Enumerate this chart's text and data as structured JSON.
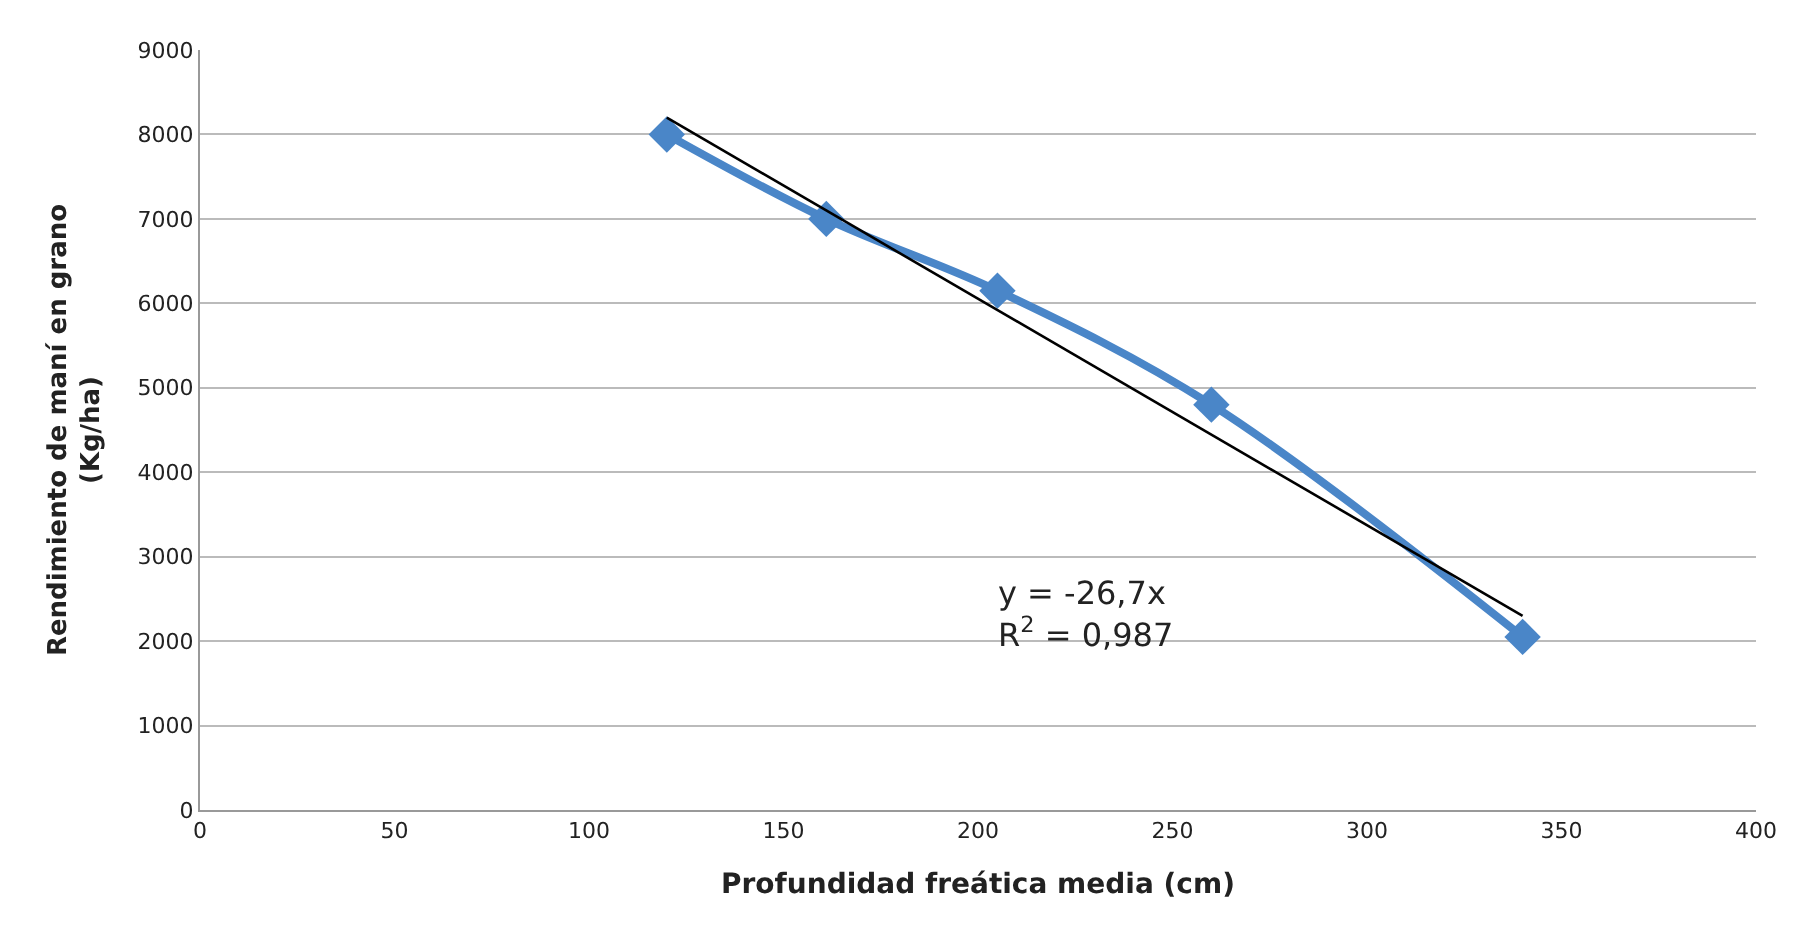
{
  "chart_data": {
    "type": "line",
    "xlabel": "Profundidad freática media (cm)",
    "ylabel": "Rendimiento de maní en grano\n(Kg/ha)",
    "xlim": [
      0,
      400
    ],
    "xticks": [
      0,
      50,
      100,
      150,
      200,
      250,
      300,
      350,
      400
    ],
    "ylim": [
      0,
      9000
    ],
    "yticks": [
      0,
      1000,
      2000,
      3000,
      4000,
      5000,
      6000,
      7000,
      8000,
      9000
    ],
    "grid": "y",
    "marker": "diamond",
    "line_style": "solid",
    "series": [
      {
        "color": "#4a86c8",
        "x": [
          120,
          161,
          205,
          260,
          340
        ],
        "values": [
          8000,
          7000,
          6150,
          4800,
          2050
        ]
      },
      {
        "type": "line",
        "color": "#000000",
        "x": [
          120,
          340
        ],
        "values": [
          8200,
          2300
        ],
        "marker": "none"
      }
    ],
    "annotations": [
      "y = -26,7x\nR$^{2}$ = 0,987"
    ]
  }
}
